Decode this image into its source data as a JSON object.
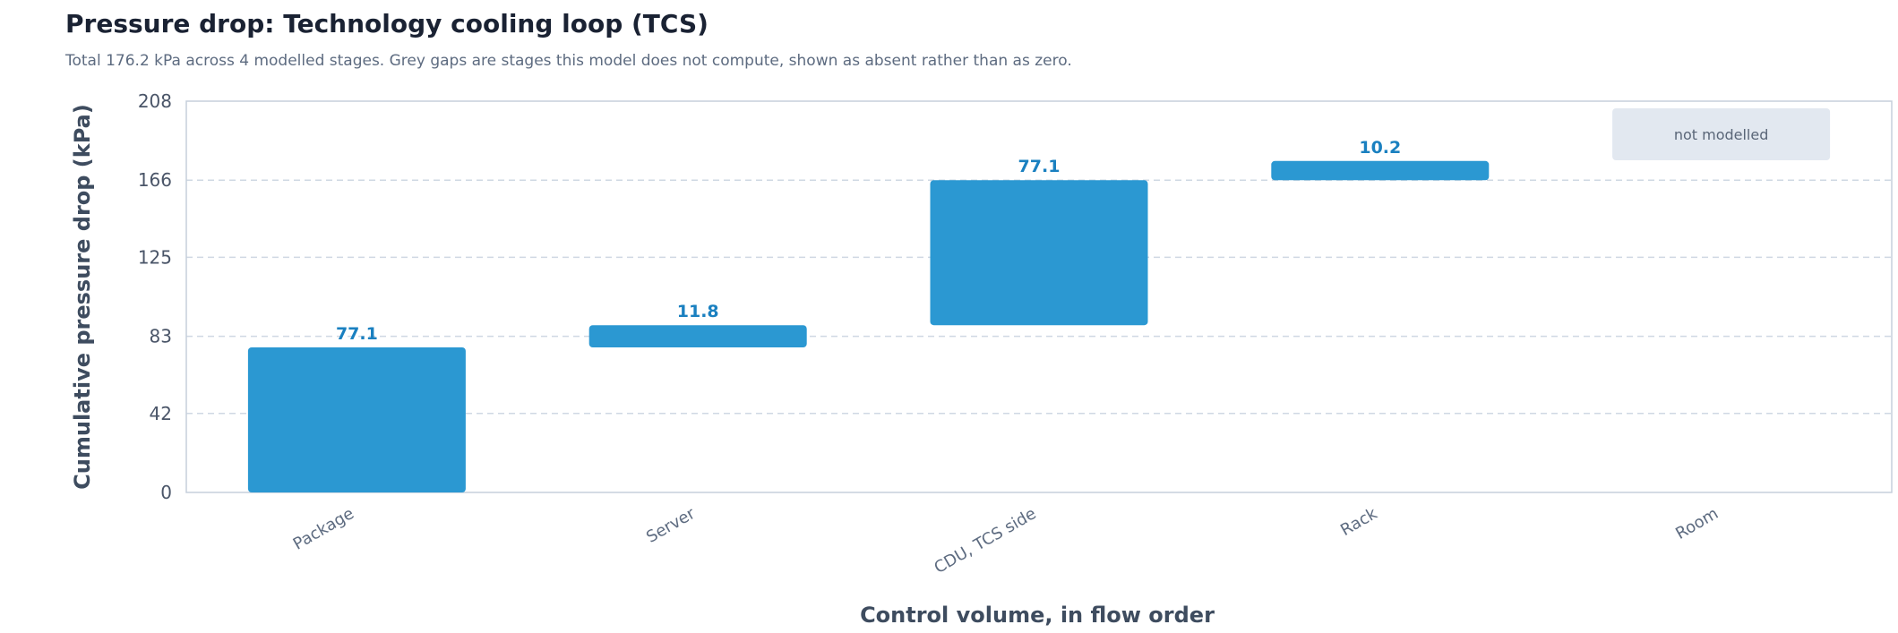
{
  "title": "Pressure drop: Technology cooling loop (TCS)",
  "subtitle": "Total 176.2 kPa across 4 modelled stages. Grey gaps are stages this model does not compute, shown as absent rather than as zero.",
  "colors": {
    "bar": "#2b98d2",
    "label": "#1a80c0",
    "gap": "#e2e8f0",
    "grid": "#cfd8e3",
    "axis": "#c5cfdb"
  },
  "chart_data": {
    "type": "waterfall",
    "title": "Pressure drop: Technology cooling loop (TCS)",
    "xlabel": "Control volume, in flow order",
    "ylabel": "Cumulative pressure drop (kPa)",
    "ylim": [
      0,
      208
    ],
    "yticks": [
      "0",
      "42",
      "83",
      "125",
      "166",
      "208"
    ],
    "ytick_values": [
      0,
      42,
      83,
      125,
      166,
      208
    ],
    "grid": true,
    "categories": [
      "Package",
      "Server",
      "CDU, TCS side",
      "Rack",
      "Room"
    ],
    "stages": [
      {
        "name": "Package",
        "start": 0,
        "end": 77.1,
        "value": 77.1,
        "label": "77.1",
        "modelled": true
      },
      {
        "name": "Server",
        "start": 77.1,
        "end": 88.9,
        "value": 11.8,
        "label": "11.8",
        "modelled": true
      },
      {
        "name": "CDU, TCS side",
        "start": 88.9,
        "end": 166.0,
        "value": 77.1,
        "label": "77.1",
        "modelled": true
      },
      {
        "name": "Rack",
        "start": 166.0,
        "end": 176.2,
        "value": 10.2,
        "label": "10.2",
        "modelled": true
      },
      {
        "name": "Room",
        "start": null,
        "end": null,
        "value": null,
        "label": "not modelled",
        "modelled": false
      }
    ],
    "total": 176.2
  }
}
